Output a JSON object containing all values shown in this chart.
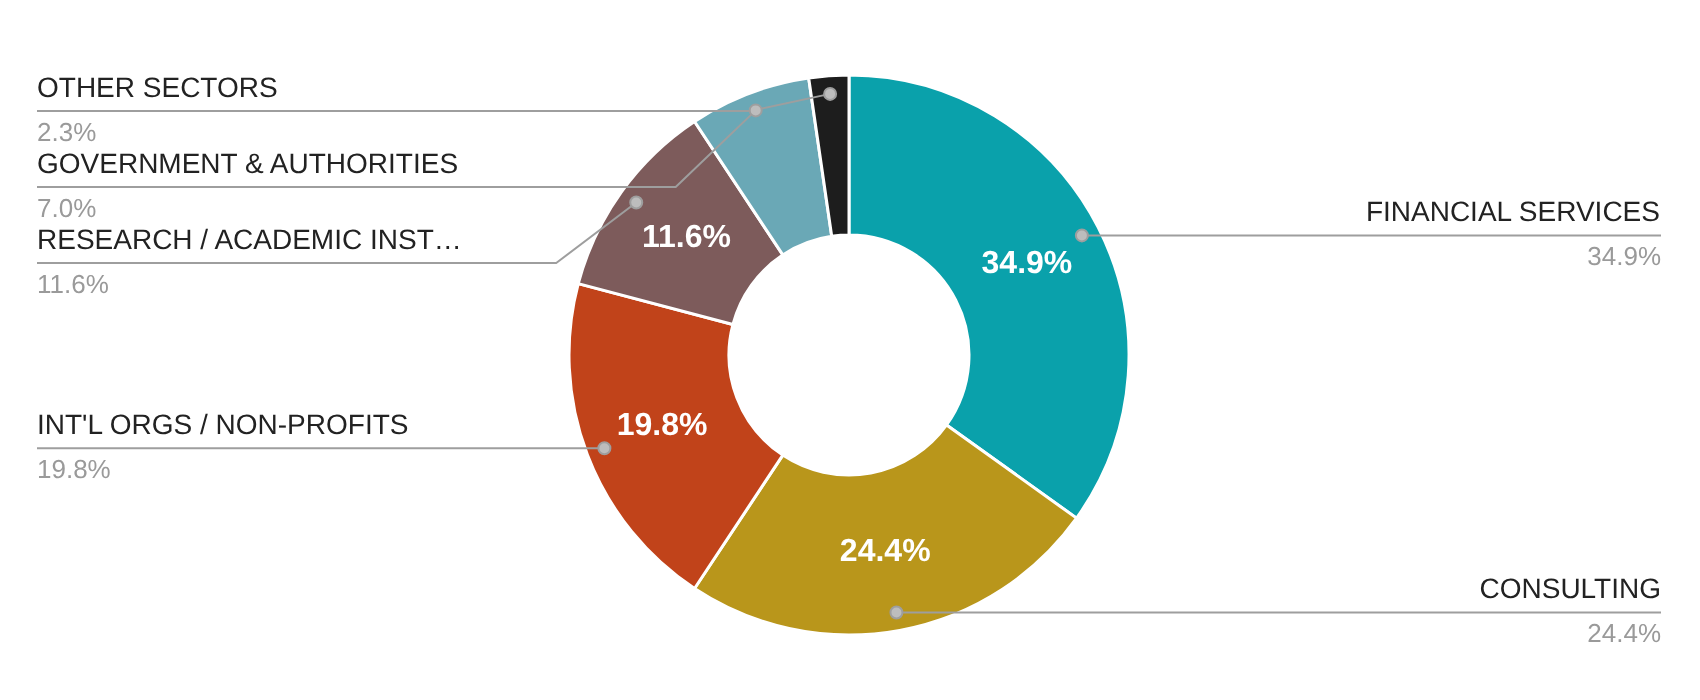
{
  "chart_data": {
    "type": "donut",
    "categories": [
      "FINANCIAL SERVICES",
      "CONSULTING",
      "INT'L ORGS / NON-PROFITS",
      "RESEARCH / ACADEMIC INST…",
      "GOVERNMENT & AUTHORITIES",
      "OTHER SECTORS"
    ],
    "values": [
      34.9,
      24.4,
      19.8,
      11.6,
      7.0,
      2.3
    ],
    "colors": [
      "#0aa1ab",
      "#b9961b",
      "#c1431a",
      "#7d5b5b",
      "#6aa8b6",
      "#1d1d1d"
    ],
    "value_labels": [
      "34.9%",
      "24.4%",
      "19.8%",
      "11.6%",
      "7.0%",
      "2.3%"
    ]
  }
}
